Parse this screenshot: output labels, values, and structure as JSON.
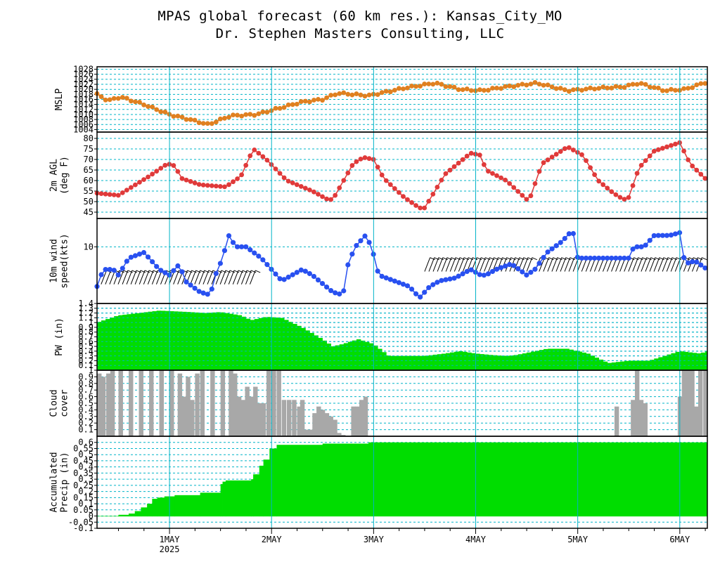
{
  "title": "MPAS global forecast (60 km res.): Kansas_City_MO",
  "subtitle": "Dr. Stephen Masters Consulting, LLC",
  "x_axis": {
    "labels": [
      "1MAY",
      "2MAY",
      "3MAY",
      "4MAY",
      "5MAY",
      "6MAY"
    ],
    "year_label": "2025",
    "range_days": [
      0.29,
      6.27
    ],
    "label_days": [
      1,
      2,
      3,
      4,
      5,
      6
    ]
  },
  "colors": {
    "grid": "#00b4c8",
    "mslp": "#e08020",
    "temp": "#e03a3a",
    "wind": "#2850f0",
    "pw": "#00dd00",
    "cloud": "#a8a8a8",
    "precip": "#00dd00"
  },
  "chart_data": [
    {
      "name": "mslp",
      "type": "line",
      "ylabel": [
        "MSLP"
      ],
      "ylim": [
        1003,
        1029
      ],
      "yticks": [
        1004,
        1006,
        1008,
        1010,
        1012,
        1014,
        1016,
        1018,
        1020,
        1022,
        1024,
        1026,
        1028
      ],
      "ytick_labels": [
        "1004",
        "1006",
        "1008",
        "1010",
        "1012",
        "1014",
        "1016",
        "1018",
        "1020",
        "1022",
        "1024",
        "1026",
        "1028"
      ],
      "keyframes": [
        [
          0.29,
          1018
        ],
        [
          0.4,
          1015.5
        ],
        [
          0.52,
          1017
        ],
        [
          0.75,
          1014
        ],
        [
          1.0,
          1010
        ],
        [
          1.2,
          1008
        ],
        [
          1.38,
          1006
        ],
        [
          1.6,
          1009.5
        ],
        [
          1.85,
          1010
        ],
        [
          2.3,
          1015
        ],
        [
          2.5,
          1016
        ],
        [
          2.65,
          1018.5
        ],
        [
          2.95,
          1017.5
        ],
        [
          3.3,
          1020.5
        ],
        [
          3.6,
          1022.5
        ],
        [
          3.85,
          1020
        ],
        [
          4.05,
          1019.5
        ],
        [
          4.3,
          1021
        ],
        [
          4.6,
          1022.5
        ],
        [
          4.9,
          1019.5
        ],
        [
          5.2,
          1020.5
        ],
        [
          5.45,
          1021
        ],
        [
          5.6,
          1022.5
        ],
        [
          5.85,
          1019.5
        ],
        [
          6.05,
          1020
        ],
        [
          6.27,
          1023
        ]
      ]
    },
    {
      "name": "temp",
      "type": "line",
      "ylabel": [
        "2m AGL",
        "(deg F)"
      ],
      "ylim": [
        42,
        83
      ],
      "yticks": [
        45,
        50,
        55,
        60,
        65,
        70,
        75,
        80
      ],
      "ytick_labels": [
        "45",
        "50",
        "55",
        "60",
        "65",
        "70",
        "75",
        "80"
      ],
      "keyframes": [
        [
          0.29,
          54
        ],
        [
          0.5,
          53
        ],
        [
          0.8,
          62
        ],
        [
          0.98,
          68
        ],
        [
          1.05,
          67
        ],
        [
          1.12,
          61
        ],
        [
          1.3,
          58
        ],
        [
          1.55,
          57
        ],
        [
          1.7,
          62
        ],
        [
          1.82,
          75
        ],
        [
          1.95,
          70
        ],
        [
          2.15,
          60
        ],
        [
          2.4,
          55
        ],
        [
          2.55,
          51
        ],
        [
          2.6,
          51
        ],
        [
          2.8,
          68
        ],
        [
          2.9,
          71
        ],
        [
          3.0,
          70
        ],
        [
          3.1,
          61
        ],
        [
          3.3,
          52
        ],
        [
          3.45,
          47
        ],
        [
          3.5,
          47
        ],
        [
          3.7,
          63
        ],
        [
          3.95,
          73
        ],
        [
          4.05,
          72
        ],
        [
          4.1,
          65
        ],
        [
          4.3,
          60
        ],
        [
          4.5,
          51
        ],
        [
          4.52,
          50
        ],
        [
          4.65,
          68
        ],
        [
          4.9,
          76
        ],
        [
          5.05,
          72
        ],
        [
          5.2,
          60
        ],
        [
          5.35,
          54
        ],
        [
          5.45,
          51
        ],
        [
          5.5,
          52
        ],
        [
          5.6,
          66
        ],
        [
          5.75,
          74
        ],
        [
          6.0,
          78
        ],
        [
          6.1,
          68
        ],
        [
          6.27,
          60
        ]
      ]
    },
    {
      "name": "wind",
      "type": "line",
      "ylabel": [
        "10m wind",
        "speed(kts)"
      ],
      "ylim": [
        0,
        15
      ],
      "yticks": [
        10
      ],
      "ytick_labels": [
        "10"
      ],
      "keyframes": [
        [
          0.29,
          3
        ],
        [
          0.35,
          6
        ],
        [
          0.45,
          6
        ],
        [
          0.5,
          5
        ],
        [
          0.6,
          8
        ],
        [
          0.75,
          9
        ],
        [
          0.9,
          6
        ],
        [
          1.0,
          5
        ],
        [
          1.1,
          7
        ],
        [
          1.15,
          4
        ],
        [
          1.3,
          2
        ],
        [
          1.4,
          1.5
        ],
        [
          1.45,
          5
        ],
        [
          1.52,
          8
        ],
        [
          1.58,
          12
        ],
        [
          1.65,
          10
        ],
        [
          1.75,
          10
        ],
        [
          1.9,
          8
        ],
        [
          2.0,
          6
        ],
        [
          2.1,
          4
        ],
        [
          2.2,
          5
        ],
        [
          2.3,
          6
        ],
        [
          2.4,
          5
        ],
        [
          2.5,
          3.5
        ],
        [
          2.6,
          2
        ],
        [
          2.7,
          1.5
        ],
        [
          2.75,
          7
        ],
        [
          2.82,
          10
        ],
        [
          2.92,
          12
        ],
        [
          2.98,
          10
        ],
        [
          3.05,
          5
        ],
        [
          3.2,
          4
        ],
        [
          3.35,
          3
        ],
        [
          3.45,
          1
        ],
        [
          3.55,
          3
        ],
        [
          3.65,
          4
        ],
        [
          3.8,
          4.5
        ],
        [
          3.95,
          6
        ],
        [
          4.05,
          5
        ],
        [
          4.1,
          5
        ],
        [
          4.2,
          6
        ],
        [
          4.35,
          7
        ],
        [
          4.5,
          5
        ],
        [
          4.58,
          6
        ],
        [
          4.7,
          9
        ],
        [
          4.85,
          11
        ],
        [
          4.95,
          13
        ],
        [
          5.0,
          8
        ],
        [
          5.1,
          8
        ],
        [
          5.3,
          8
        ],
        [
          5.5,
          8
        ],
        [
          5.55,
          10
        ],
        [
          5.65,
          10
        ],
        [
          5.75,
          12
        ],
        [
          5.9,
          12
        ],
        [
          6.0,
          12.5
        ],
        [
          6.05,
          7
        ],
        [
          6.15,
          7.5
        ],
        [
          6.27,
          6
        ]
      ]
    },
    {
      "name": "pw",
      "type": "area",
      "ylabel": [
        "PW (in)"
      ],
      "ylim": [
        0,
        1.4
      ],
      "yticks": [
        0.1,
        0.2,
        0.3,
        0.4,
        0.5,
        0.6,
        0.7,
        0.8,
        0.9,
        1,
        1.1,
        1.2,
        1.3,
        1.4
      ],
      "ytick_labels": [
        "0.1",
        "0.2",
        "0.3",
        "0.4",
        "0.5",
        "0.6",
        "0.7",
        "0.8",
        "0.9",
        "1",
        "1.1",
        "1.2",
        "1.3",
        "1.4"
      ],
      "keyframes": [
        [
          0.29,
          1.0
        ],
        [
          0.5,
          1.15
        ],
        [
          0.9,
          1.25
        ],
        [
          1.2,
          1.22
        ],
        [
          1.35,
          1.2
        ],
        [
          1.5,
          1.22
        ],
        [
          1.7,
          1.15
        ],
        [
          1.8,
          1.05
        ],
        [
          1.95,
          1.12
        ],
        [
          2.1,
          1.1
        ],
        [
          2.3,
          0.9
        ],
        [
          2.5,
          0.65
        ],
        [
          2.6,
          0.5
        ],
        [
          2.7,
          0.55
        ],
        [
          2.85,
          0.65
        ],
        [
          3.0,
          0.55
        ],
        [
          3.15,
          0.3
        ],
        [
          3.5,
          0.3
        ],
        [
          3.7,
          0.35
        ],
        [
          3.85,
          0.4
        ],
        [
          4.0,
          0.35
        ],
        [
          4.15,
          0.32
        ],
        [
          4.3,
          0.3
        ],
        [
          4.4,
          0.32
        ],
        [
          4.7,
          0.45
        ],
        [
          4.9,
          0.45
        ],
        [
          5.1,
          0.35
        ],
        [
          5.3,
          0.15
        ],
        [
          5.5,
          0.2
        ],
        [
          5.7,
          0.2
        ],
        [
          5.85,
          0.3
        ],
        [
          6.0,
          0.4
        ],
        [
          6.2,
          0.35
        ],
        [
          6.27,
          0.4
        ]
      ]
    },
    {
      "name": "cloud",
      "type": "bar",
      "ylabel": [
        "Cloud",
        "cover"
      ],
      "ylim": [
        0,
        1
      ],
      "yticks": [
        0.1,
        0.2,
        0.3,
        0.4,
        0.5,
        0.6,
        0.7,
        0.8,
        0.9,
        1
      ],
      "ytick_labels": [
        "0.1",
        "0.2",
        "0.3",
        "0.4",
        "0.5",
        "0.6",
        "0.7",
        "0.8",
        "0.9",
        "1"
      ],
      "bar_width_days": 0.04167,
      "bars": [
        [
          0.29,
          0.95
        ],
        [
          0.33,
          0.9
        ],
        [
          0.38,
          0.95
        ],
        [
          0.42,
          1
        ],
        [
          0.5,
          1
        ],
        [
          0.6,
          1
        ],
        [
          0.7,
          1
        ],
        [
          0.8,
          1
        ],
        [
          0.9,
          1
        ],
        [
          1.0,
          1
        ],
        [
          1.08,
          0.95
        ],
        [
          1.12,
          0.6
        ],
        [
          1.16,
          0.9
        ],
        [
          1.2,
          0.55
        ],
        [
          1.25,
          0.95
        ],
        [
          1.3,
          1
        ],
        [
          1.4,
          1
        ],
        [
          1.5,
          1
        ],
        [
          1.58,
          1
        ],
        [
          1.62,
          0.95
        ],
        [
          1.66,
          0.6
        ],
        [
          1.7,
          0.55
        ],
        [
          1.74,
          0.75
        ],
        [
          1.78,
          0.6
        ],
        [
          1.82,
          0.75
        ],
        [
          1.86,
          0.5
        ],
        [
          1.9,
          0.5
        ],
        [
          1.95,
          1
        ],
        [
          2.0,
          1
        ],
        [
          2.05,
          1
        ],
        [
          2.1,
          0.55
        ],
        [
          2.15,
          0.55
        ],
        [
          2.2,
          0.55
        ],
        [
          2.25,
          0.45
        ],
        [
          2.28,
          0.55
        ],
        [
          2.32,
          0.1
        ],
        [
          2.36,
          0.1
        ],
        [
          2.4,
          0.35
        ],
        [
          2.44,
          0.45
        ],
        [
          2.48,
          0.4
        ],
        [
          2.52,
          0.35
        ],
        [
          2.56,
          0.3
        ],
        [
          2.6,
          0.25
        ],
        [
          2.64,
          0.05
        ],
        [
          2.68,
          0.02
        ],
        [
          2.78,
          0.45
        ],
        [
          2.82,
          0.45
        ],
        [
          2.86,
          0.55
        ],
        [
          2.9,
          0.6
        ],
        [
          5.36,
          0.45
        ],
        [
          5.52,
          0.55
        ],
        [
          5.56,
          1
        ],
        [
          5.6,
          0.55
        ],
        [
          5.64,
          0.5
        ],
        [
          5.98,
          0.6
        ],
        [
          6.02,
          1
        ],
        [
          6.06,
          1
        ],
        [
          6.1,
          1
        ],
        [
          6.14,
          0.45
        ],
        [
          6.18,
          1
        ],
        [
          6.23,
          1
        ]
      ]
    },
    {
      "name": "precip",
      "type": "area",
      "ylabel": [
        "Accumulated",
        "Precip (in)"
      ],
      "ylim": [
        -0.1,
        0.65
      ],
      "yticks": [
        -0.1,
        -0.05,
        0,
        0.05,
        0.1,
        0.15,
        0.2,
        0.25,
        0.3,
        0.35,
        0.4,
        0.45,
        0.5,
        0.55,
        0.6
      ],
      "ytick_labels": [
        "-0.1",
        "-0.05",
        "0",
        "0.05",
        "0.1",
        "0.15",
        "0.2",
        "0.25",
        "0.3",
        "0.35",
        "0.4",
        "0.45",
        "0.5",
        "0.55",
        "0.6"
      ],
      "steps": [
        [
          0.29,
          0
        ],
        [
          0.5,
          0.01
        ],
        [
          0.6,
          0.02
        ],
        [
          0.66,
          0.04
        ],
        [
          0.72,
          0.07
        ],
        [
          0.78,
          0.1
        ],
        [
          0.83,
          0.14
        ],
        [
          0.88,
          0.15
        ],
        [
          0.95,
          0.16
        ],
        [
          1.05,
          0.17
        ],
        [
          1.3,
          0.19
        ],
        [
          1.5,
          0.26
        ],
        [
          1.52,
          0.28
        ],
        [
          1.55,
          0.29
        ],
        [
          1.8,
          0.3
        ],
        [
          1.82,
          0.34
        ],
        [
          1.88,
          0.41
        ],
        [
          1.92,
          0.46
        ],
        [
          1.98,
          0.55
        ],
        [
          2.05,
          0.58
        ],
        [
          2.5,
          0.59
        ],
        [
          2.95,
          0.6
        ],
        [
          3.0,
          0.6
        ],
        [
          6.27,
          0.6
        ]
      ]
    },
    {
      "name": "wind_barbs",
      "type": "scatter",
      "note_barb_segments": [
        [
          0.33,
          1.8,
          3.38
        ],
        [
          3.5,
          4.52,
          5.64
        ],
        [
          4.58,
          6.2,
          5.64
        ]
      ]
    }
  ]
}
